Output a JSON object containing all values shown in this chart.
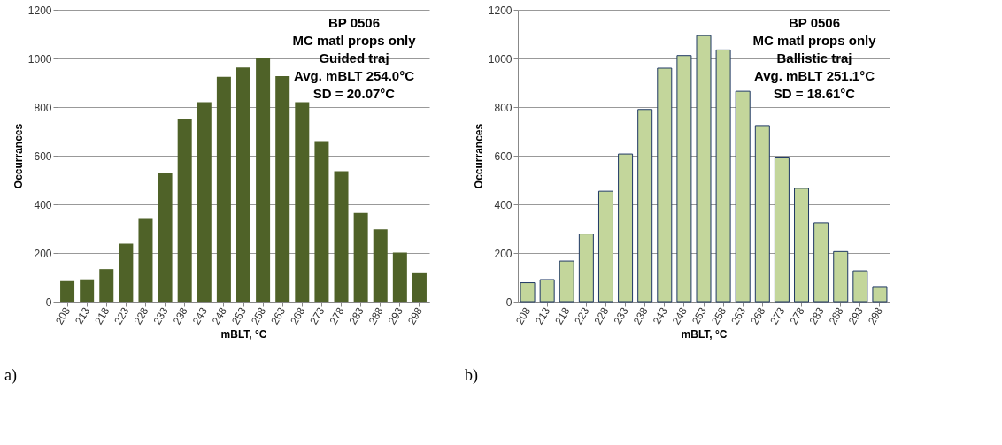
{
  "chart_data": [
    {
      "type": "bar",
      "categories": [
        "208",
        "213",
        "218",
        "223",
        "228",
        "233",
        "238",
        "243",
        "248",
        "253",
        "258",
        "263",
        "268",
        "273",
        "278",
        "283",
        "288",
        "293",
        "298"
      ],
      "values": [
        85,
        92,
        134,
        238,
        344,
        530,
        752,
        820,
        925,
        963,
        1000,
        927,
        820,
        660,
        536,
        365,
        297,
        202,
        117
      ],
      "color": "#4f6228",
      "xlabel": "mBLT, °C",
      "ylabel": "Occurrances",
      "ylim": [
        0,
        1200
      ],
      "yticks": [
        0,
        200,
        400,
        600,
        800,
        1000,
        1200
      ],
      "grid": "y",
      "annotations": [
        "BP 0506\nMC matl props only\nGuided traj\nAvg. mBLT 254.0°C\nSD = 20.07°C",
        "a)"
      ]
    },
    {
      "type": "bar",
      "categories": [
        "208",
        "213",
        "218",
        "223",
        "228",
        "233",
        "238",
        "243",
        "248",
        "253",
        "258",
        "263",
        "268",
        "273",
        "278",
        "283",
        "288",
        "293",
        "298"
      ],
      "values": [
        78,
        91,
        167,
        278,
        454,
        607,
        790,
        960,
        1012,
        1094,
        1035,
        865,
        724,
        591,
        466,
        324,
        206,
        127,
        62
      ],
      "color": "#c3d69b",
      "xlabel": "mBLT, °C",
      "ylabel": "Occurrances",
      "ylim": [
        0,
        1200
      ],
      "yticks": [
        0,
        200,
        400,
        600,
        800,
        1000,
        1200
      ],
      "grid": "y",
      "annotations": [
        "BP 0506\nMC matl props only\nBallistic traj\nAvg. mBLT 251.1°C\nSD = 18.61°C",
        "b)"
      ]
    }
  ]
}
